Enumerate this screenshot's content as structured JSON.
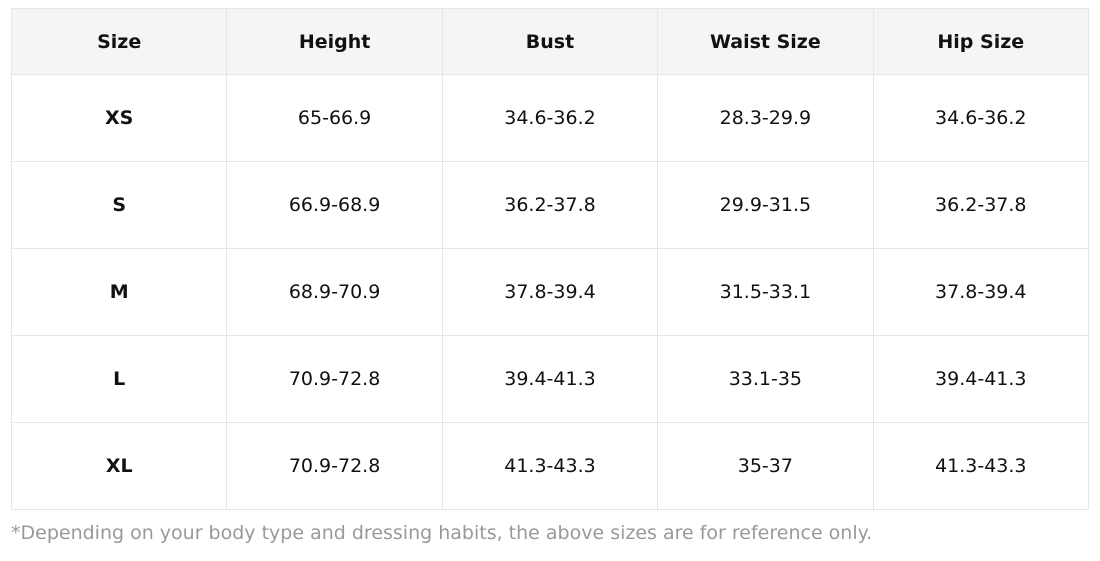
{
  "table": {
    "header": [
      "Size",
      "Height",
      "Bust",
      "Waist Size",
      "Hip Size"
    ],
    "rows": [
      [
        "XS",
        "65-66.9",
        "34.6-36.2",
        "28.3-29.9",
        "34.6-36.2"
      ],
      [
        "S",
        "66.9-68.9",
        "36.2-37.8",
        "29.9-31.5",
        "36.2-37.8"
      ],
      [
        "M",
        "68.9-70.9",
        "37.8-39.4",
        "31.5-33.1",
        "37.8-39.4"
      ],
      [
        "L",
        "70.9-72.8",
        "39.4-41.3",
        "33.1-35",
        "39.4-41.3"
      ],
      [
        "XL",
        "70.9-72.8",
        "41.3-43.3",
        "35-37",
        "41.3-43.3"
      ]
    ]
  },
  "note": "*Depending on your body type and dressing habits, the above sizes are for reference only."
}
